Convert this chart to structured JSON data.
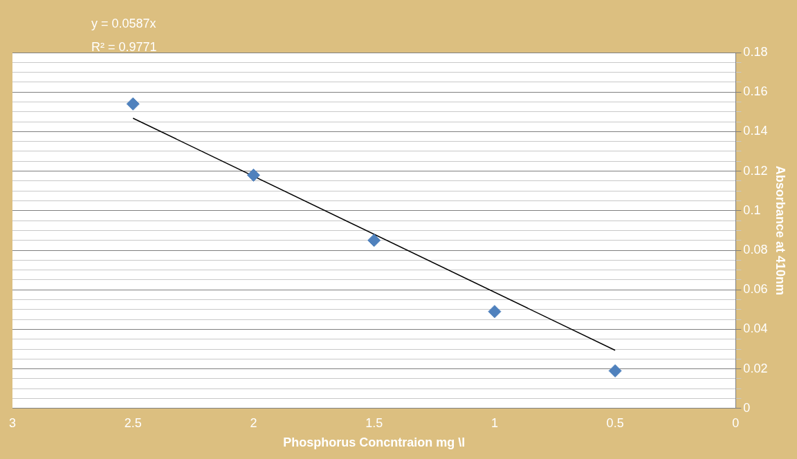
{
  "chart_data": {
    "type": "scatter",
    "xlabel": "Phosphorus Concntraion mg \\l",
    "ylabel": "Absorbance at 410nm",
    "annotations": [
      "y = 0.0587x",
      "R² = 0.9771"
    ],
    "xlim": [
      3,
      0
    ],
    "xticks": [
      3,
      2.5,
      2,
      1.5,
      1,
      0.5,
      0
    ],
    "ylim": [
      0,
      0.18
    ],
    "yticks": [
      0,
      {
        "value": 0.005,
        "label": null
      },
      {
        "value": 0.01,
        "label": null
      },
      {
        "value": 0.015,
        "label": null
      },
      0.02,
      {
        "value": 0.025,
        "label": null
      },
      {
        "value": 0.03,
        "label": null
      },
      {
        "value": 0.035,
        "label": null
      },
      0.04,
      {
        "value": 0.045,
        "label": null
      },
      {
        "value": 0.05,
        "label": null
      },
      {
        "value": 0.055,
        "label": null
      },
      0.06,
      {
        "value": 0.065,
        "label": null
      },
      {
        "value": 0.07,
        "label": null
      },
      {
        "value": 0.075,
        "label": null
      },
      0.08,
      {
        "value": 0.085,
        "label": null
      },
      {
        "value": 0.09,
        "label": null
      },
      {
        "value": 0.095,
        "label": null
      },
      0.1,
      {
        "value": 0.105,
        "label": null
      },
      {
        "value": 0.11,
        "label": null
      },
      {
        "value": 0.115,
        "label": null
      },
      0.12,
      {
        "value": 0.125,
        "label": null
      },
      {
        "value": 0.13,
        "label": null
      },
      {
        "value": 0.135,
        "label": null
      },
      0.14,
      {
        "value": 0.145,
        "label": null
      },
      {
        "value": 0.15,
        "label": null
      },
      {
        "value": 0.155,
        "label": null
      },
      0.16,
      {
        "value": 0.165,
        "label": null
      },
      {
        "value": 0.17,
        "label": null
      },
      {
        "value": 0.175,
        "label": null
      },
      0.18
    ],
    "grid": "y",
    "legend": false,
    "marker": "diamond",
    "series": [
      {
        "type": "scatter",
        "color": "#4f81bd",
        "x": [
          2.5,
          2,
          1.5,
          1,
          0.5
        ],
        "values": [
          0.154,
          0.118,
          0.085,
          0.049,
          0.019
        ]
      },
      {
        "type": "line",
        "color": "#000000",
        "marker": "none",
        "x": [
          2.5,
          0.5
        ],
        "values": [
          0.1468,
          0.0294
        ]
      }
    ]
  }
}
